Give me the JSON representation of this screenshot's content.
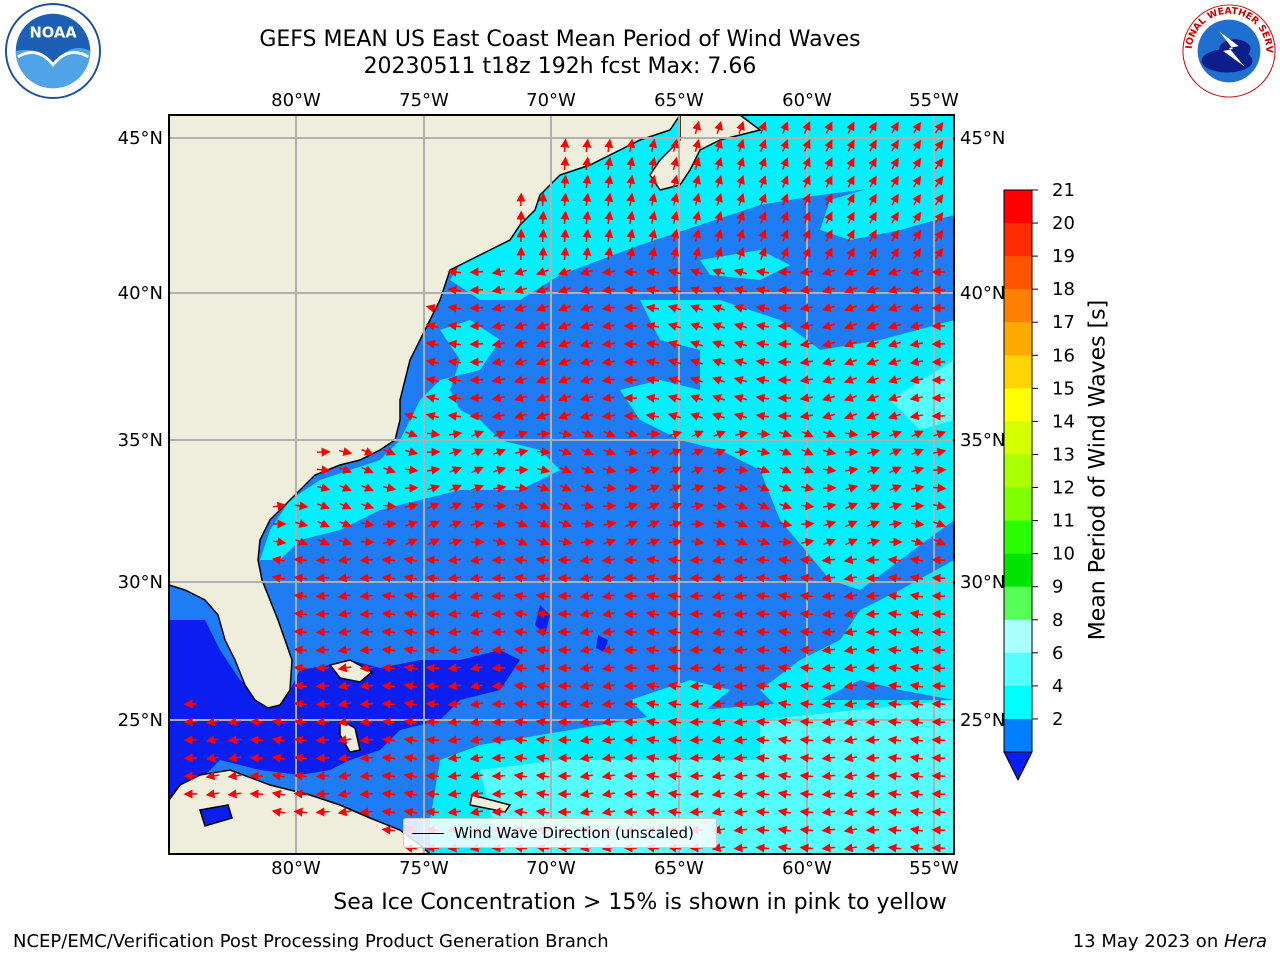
{
  "header": {
    "title": "GEFS MEAN US East Coast Mean Period of Wind Waves",
    "subtitle": "20230511 t18z 192h fcst   Max: 7.66"
  },
  "logos": {
    "noaa": {
      "text": "NOAA",
      "ring_text": "NATIONAL OCEANIC AND ATMOSPHERIC ADMINISTRATION · U.S. DEPARTMENT OF COMMERCE"
    },
    "nws": {
      "ring_text": "NATIONAL WEATHER SERVICE"
    }
  },
  "map": {
    "lon_ticks": [
      "80°W",
      "75°W",
      "70°W",
      "65°W",
      "60°W",
      "55°W"
    ],
    "lat_ticks": [
      "45°N",
      "40°N",
      "35°N",
      "30°N",
      "25°N"
    ],
    "legend_label": "Wind Wave Direction (unscaled)",
    "colors": {
      "land": "#efeedc",
      "coast": "#000000",
      "arrow": "#ff0000",
      "grid": "#b0b0b0"
    }
  },
  "colorbar": {
    "label": "Mean Period of Wind Waves [s]",
    "ticks": [
      "21",
      "20",
      "19",
      "18",
      "17",
      "16",
      "15",
      "14",
      "13",
      "12",
      "11",
      "10",
      "9",
      "8",
      "6",
      "4",
      "2"
    ],
    "colors": [
      "#ff0000",
      "#ff2a00",
      "#ff5500",
      "#ff7f00",
      "#ffaa00",
      "#ffd400",
      "#ffff00",
      "#d4ff00",
      "#aaff00",
      "#7fff00",
      "#2aff00",
      "#00e400",
      "#55ff55",
      "#aaffff",
      "#55ffff",
      "#00ffff",
      "#0080ff"
    ]
  },
  "footer": {
    "note": "Sea Ice Concentration > 15% is shown in pink to yellow",
    "credit": "NCEP/EMC/Verification Post Processing Product Generation Branch",
    "date_prefix": "13 May 2023 on ",
    "date_host": "Hera"
  }
}
